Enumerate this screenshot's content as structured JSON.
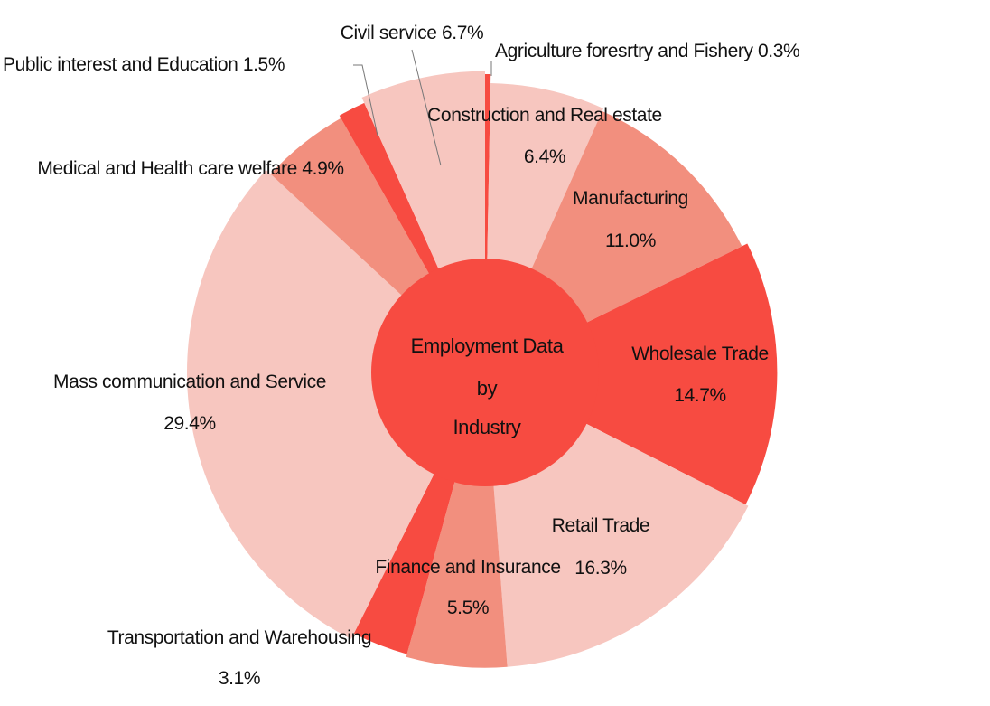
{
  "chart_data": {
    "type": "pie",
    "title": "",
    "center_label": [
      "Employment Data",
      "by",
      "Industry"
    ],
    "colors": {
      "dark": "#f74b41",
      "medium": "#f28f7e",
      "light": "#f7c6bf",
      "center": "#f74b41"
    },
    "slices": [
      {
        "name": "Agriculture foresrtry and Fishery",
        "value": 0.3,
        "display": "0.3%",
        "shade": "dark",
        "radius": 1.0
      },
      {
        "name": "Construction and Real estate",
        "value": 6.4,
        "display": "6.4%",
        "shade": "light",
        "radius": 0.97
      },
      {
        "name": "Manufacturing",
        "value": 11.0,
        "display": "11.0%",
        "shade": "medium",
        "radius": 0.96
      },
      {
        "name": "Wholesale Trade",
        "value": 14.7,
        "display": "14.7%",
        "shade": "dark",
        "radius": 0.98
      },
      {
        "name": "Retail Trade",
        "value": 16.3,
        "display": "16.3%",
        "shade": "light",
        "radius": 0.99
      },
      {
        "name": "Finance and Insurance",
        "value": 5.5,
        "display": "5.5%",
        "shade": "medium",
        "radius": 0.99
      },
      {
        "name": "Transportation and Warehousing",
        "value": 3.1,
        "display": "3.1%",
        "shade": "dark",
        "radius": 0.98
      },
      {
        "name": "Mass communication and Service",
        "value": 29.4,
        "display": "29.4%",
        "shade": "light",
        "radius": 1.0
      },
      {
        "name": "Medical and Health care welfare",
        "value": 4.9,
        "display": "4.9%",
        "shade": "medium",
        "radius": 0.98
      },
      {
        "name": "Public interest and Education",
        "value": 1.5,
        "display": "1.5%",
        "shade": "dark",
        "radius": 0.99
      },
      {
        "name": "Civil service",
        "value": 6.7,
        "display": "6.7%",
        "shade": "light",
        "radius": 1.01
      }
    ]
  }
}
